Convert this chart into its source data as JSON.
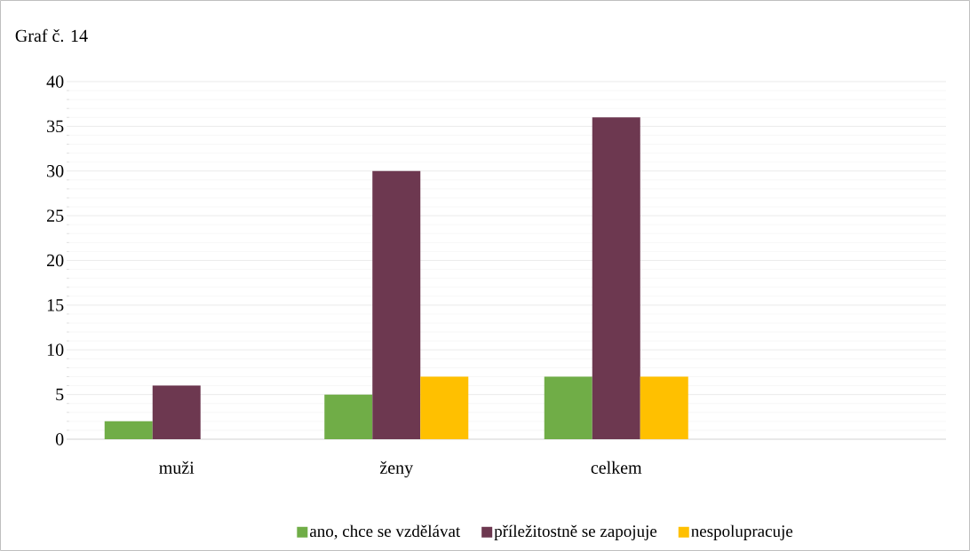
{
  "chart_data": {
    "type": "bar",
    "title": "Graf č. 14",
    "categories": [
      "muži",
      "ženy",
      "celkem",
      null
    ],
    "series": [
      {
        "name": "ano, chce se vzdělávat",
        "color": "#70ad47",
        "values": [
          2,
          5,
          7,
          null
        ]
      },
      {
        "name": "příležitostně se zapojuje",
        "color": "#6d3850",
        "values": [
          6,
          30,
          36,
          null
        ]
      },
      {
        "name": "nespolupracuje",
        "color": "#ffc000",
        "values": [
          null,
          7,
          7,
          null
        ]
      }
    ],
    "ylim": [
      0,
      40
    ],
    "yticks": [
      0,
      5,
      10,
      15,
      20,
      25,
      30,
      35,
      40
    ],
    "grid": "y",
    "legend": "bottom"
  }
}
